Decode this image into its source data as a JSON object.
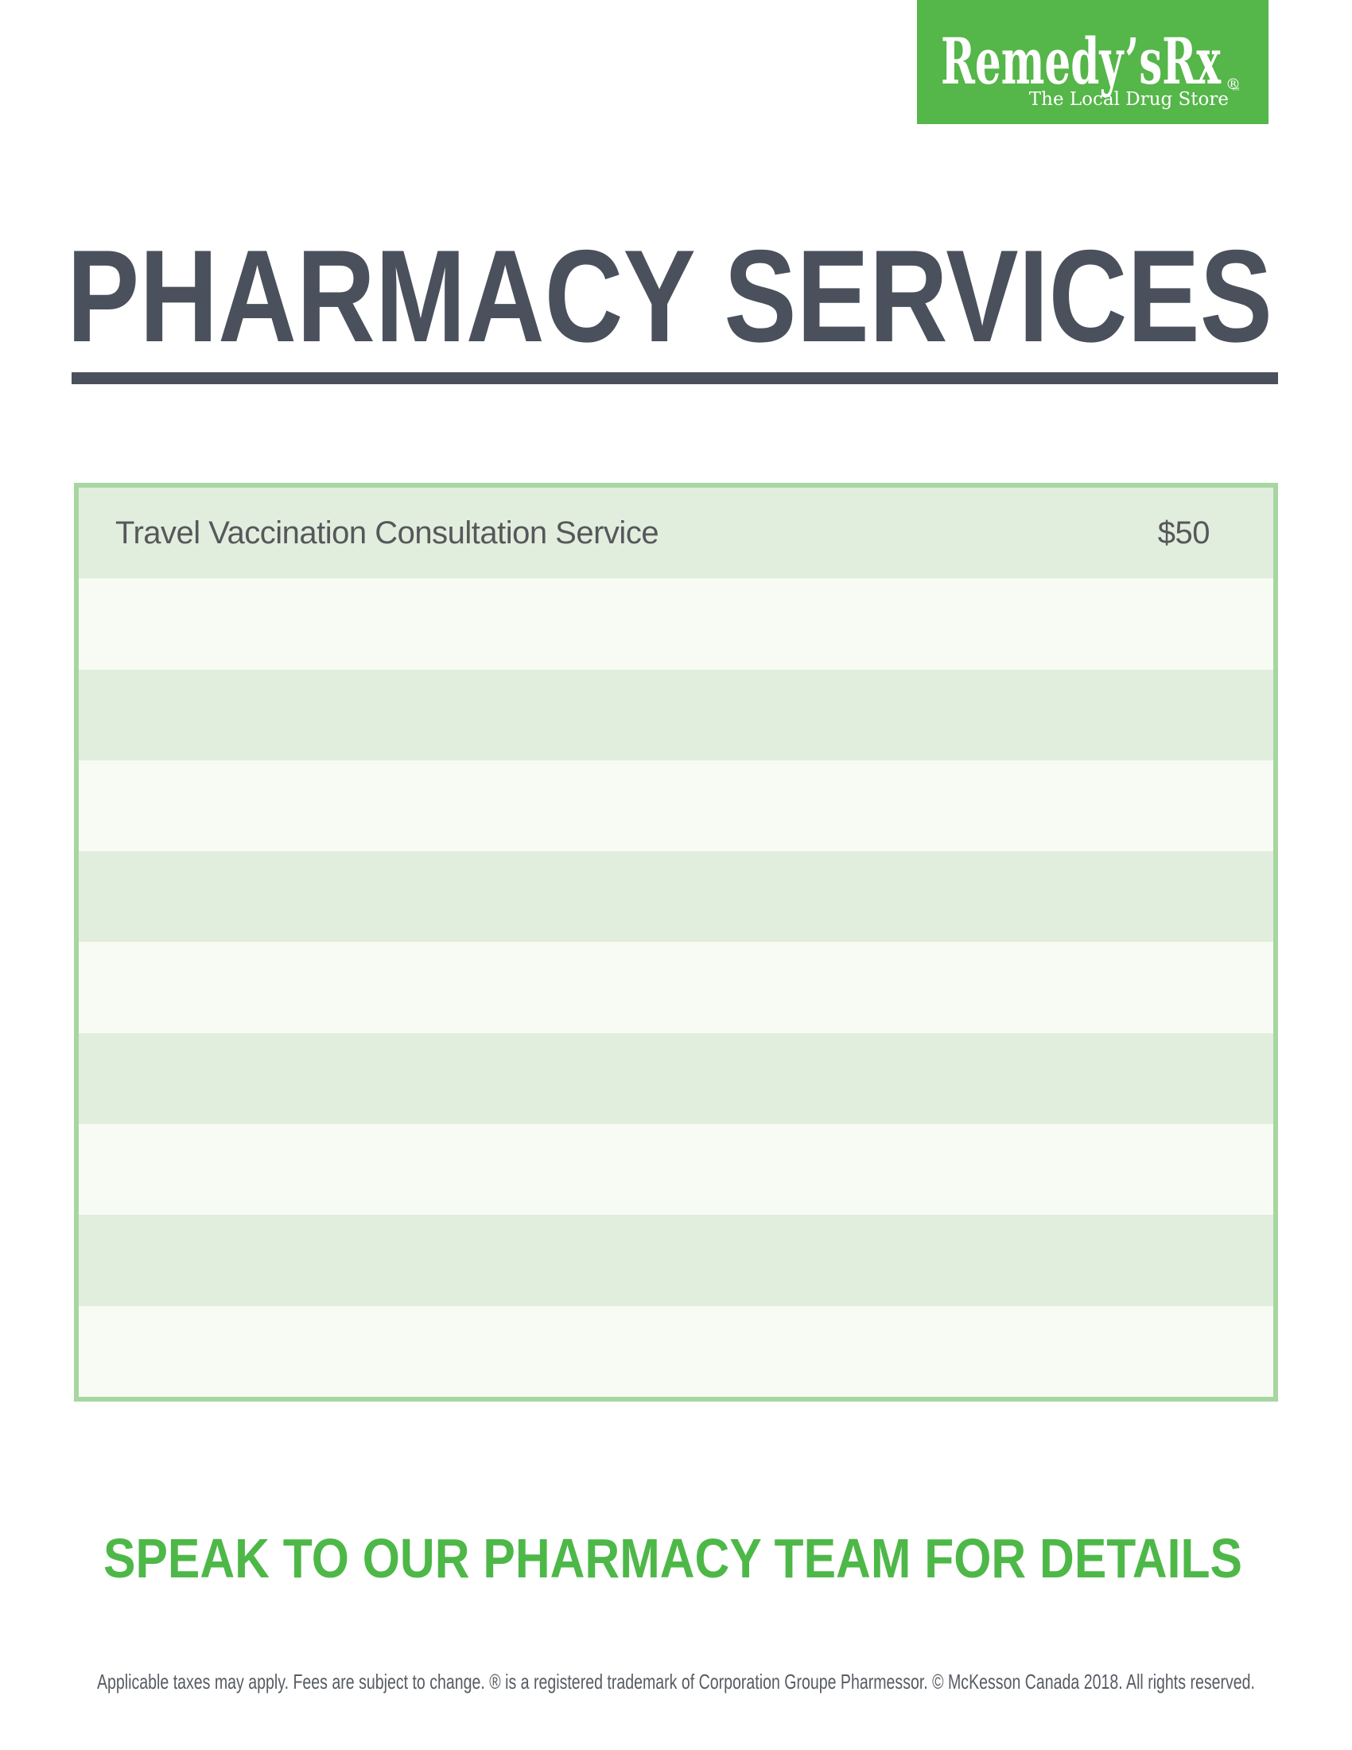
{
  "logo": {
    "brand": "Remedy’sRx",
    "registered_mark": "®",
    "tagline": "The Local Drug Store",
    "tagline_mark": "™"
  },
  "header": {
    "title": "PHARMACY SERVICES"
  },
  "services_table": {
    "rows": [
      {
        "name": "Travel Vaccination Consultation Service",
        "price": "$50"
      },
      {
        "name": "",
        "price": ""
      },
      {
        "name": "",
        "price": ""
      },
      {
        "name": "",
        "price": ""
      },
      {
        "name": "",
        "price": ""
      },
      {
        "name": "",
        "price": ""
      },
      {
        "name": "",
        "price": ""
      },
      {
        "name": "",
        "price": ""
      },
      {
        "name": "",
        "price": ""
      },
      {
        "name": "",
        "price": ""
      }
    ]
  },
  "cta": {
    "text": "SPEAK TO OUR PHARMACY TEAM FOR DETAILS"
  },
  "legal": {
    "text": "Applicable taxes may apply. Fees are subject to change. ® is a registered trademark of Corporation Groupe Pharmessor. © McKesson Canada 2018. All rights reserved."
  },
  "colors": {
    "page-bg": "#ffffff",
    "brand-green": "#55b649",
    "cta-green": "#4db848",
    "ink": "#4a515c",
    "table-border": "#a7d6a0",
    "row-green": "#e2eedd",
    "row-light": "#f8fbf4",
    "row-ink": "#55585b",
    "legal-ink": "#575c63"
  }
}
